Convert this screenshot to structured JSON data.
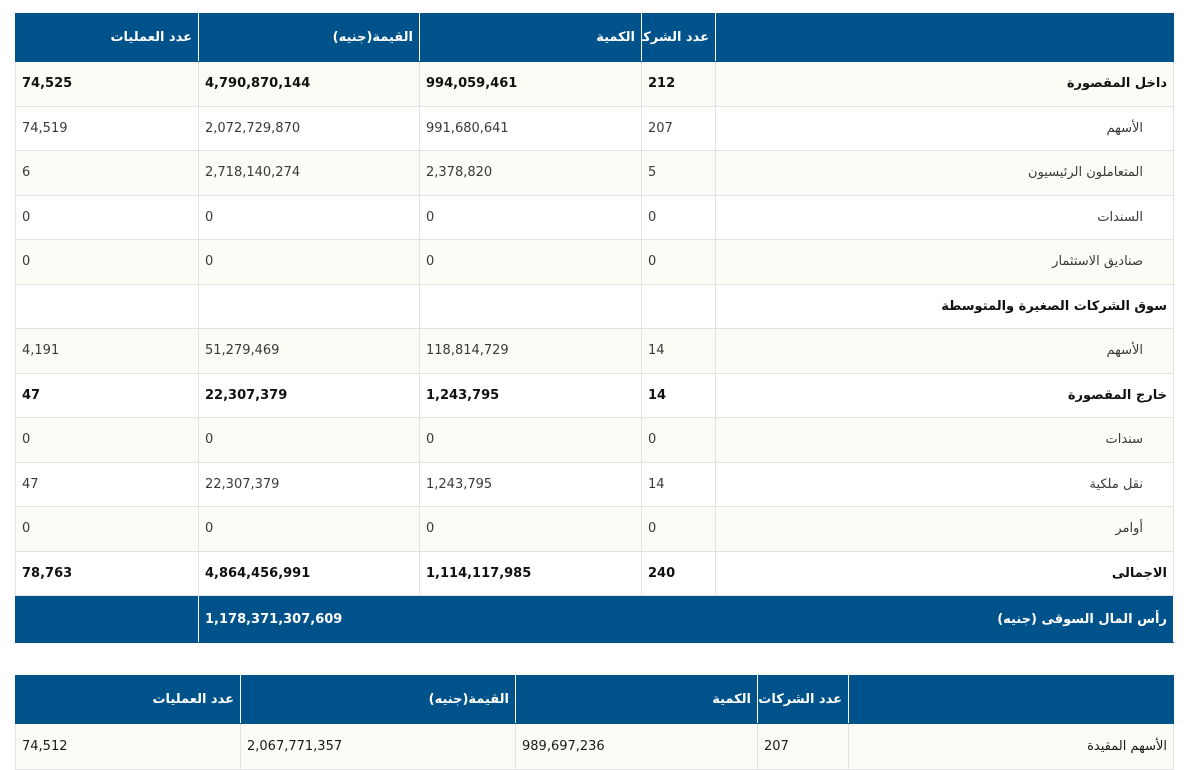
{
  "main_table": {
    "headers": {
      "label": "",
      "companies": "عدد الشركات",
      "quantity": "الكمية",
      "value": "القيمة(جنيه)",
      "trades": "عدد العمليات"
    },
    "rows": [
      {
        "label": "داخل المقصورة",
        "companies": "212",
        "quantity": "994,059,461",
        "value": "4,790,870,144",
        "trades": "74,525"
      },
      {
        "label": "الأسهم",
        "companies": "207",
        "quantity": "991,680,641",
        "value": "2,072,729,870",
        "trades": "74,519"
      },
      {
        "label": "المتعاملون الرئيسيون",
        "companies": "5",
        "quantity": "2,378,820",
        "value": "2,718,140,274",
        "trades": "6"
      },
      {
        "label": "السندات",
        "companies": "0",
        "quantity": "0",
        "value": "0",
        "trades": "0"
      },
      {
        "label": "صناديق الاستثمار",
        "companies": "0",
        "quantity": "0",
        "value": "0",
        "trades": "0"
      },
      {
        "label": "سوق الشركات الصغيرة والمتوسطة",
        "companies": "",
        "quantity": "",
        "value": "",
        "trades": ""
      },
      {
        "label": "الأسهم",
        "companies": "14",
        "quantity": "118,814,729",
        "value": "51,279,469",
        "trades": "4,191"
      },
      {
        "label": "خارج المقصورة",
        "companies": "14",
        "quantity": "1,243,795",
        "value": "22,307,379",
        "trades": "47"
      },
      {
        "label": "سندات",
        "companies": "0",
        "quantity": "0",
        "value": "0",
        "trades": "0"
      },
      {
        "label": "نقل ملكية",
        "companies": "14",
        "quantity": "1,243,795",
        "value": "22,307,379",
        "trades": "47"
      },
      {
        "label": "أوامر",
        "companies": "0",
        "quantity": "0",
        "value": "0",
        "trades": "0"
      },
      {
        "label": "الاجمالى",
        "companies": "240",
        "quantity": "1,114,117,985",
        "value": "4,864,456,991",
        "trades": "78,763"
      }
    ],
    "market_cap": {
      "label": "رأس المال السوقى (جنيه)",
      "value": "1,178,371,307,609"
    }
  },
  "second_table": {
    "headers": {
      "label": "",
      "companies": "عدد الشركات",
      "quantity": "الكمية",
      "value": "القيمة(جنيه)",
      "trades": "عدد العمليات"
    },
    "rows": [
      {
        "label": "الأسهم المقيدة",
        "companies": "207",
        "quantity": "989,697,236",
        "value": "2,067,771,357",
        "trades": "74,512"
      }
    ]
  }
}
